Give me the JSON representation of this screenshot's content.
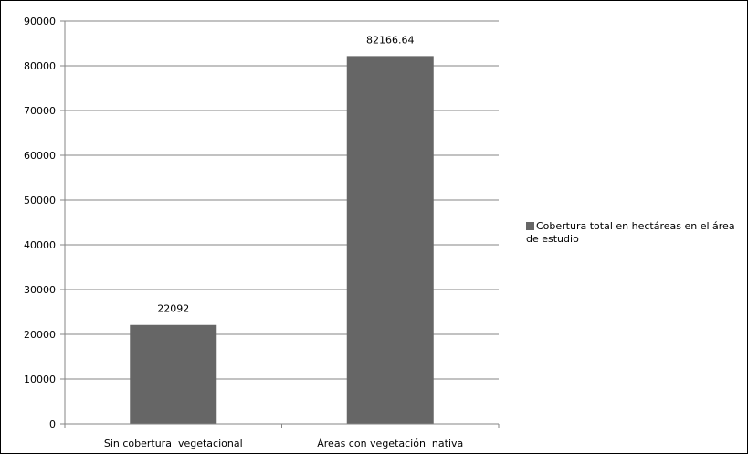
{
  "chart_data": {
    "type": "bar",
    "categories": [
      "Sin cobertura  vegetacional",
      "Áreas con vegetación  nativa"
    ],
    "series": [
      {
        "name": "Cobertura total en hectáreas en el área de estudio",
        "values": [
          22092,
          82166.64
        ]
      }
    ],
    "data_labels": [
      "22092",
      "82166.64"
    ],
    "y_ticks": [
      "0",
      "10000",
      "20000",
      "30000",
      "40000",
      "50000",
      "60000",
      "70000",
      "80000",
      "90000"
    ],
    "ylim": [
      0,
      90000
    ],
    "grid": true,
    "legend_position": "right",
    "bar_color": "#666666"
  }
}
